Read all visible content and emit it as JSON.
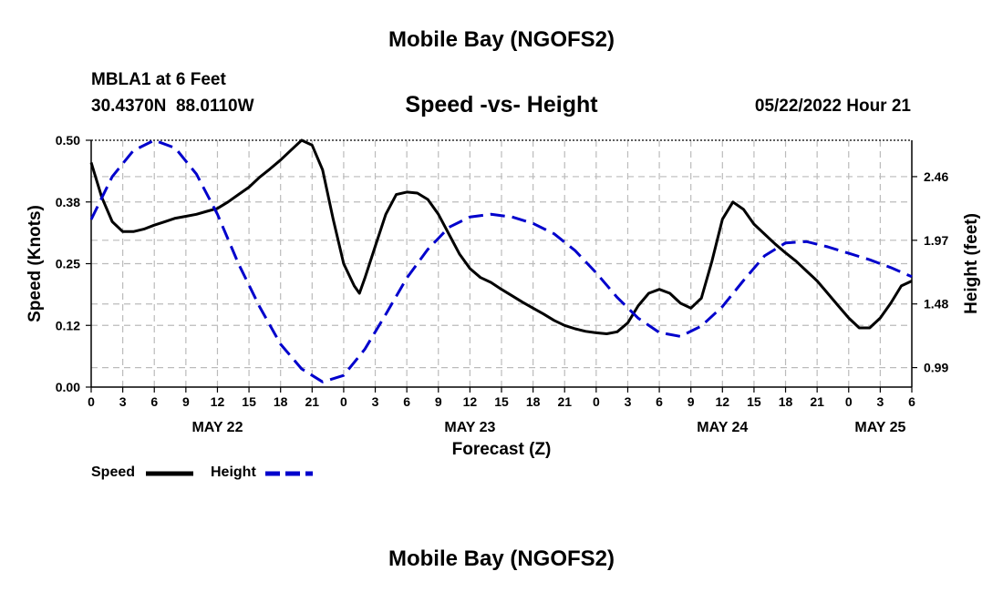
{
  "page": {
    "title": "Mobile Bay (NGOFS2)",
    "footer_title": "Mobile Bay (NGOFS2)",
    "station": "MBLA1 at 6 Feet",
    "coords": "30.4370N  88.0110W",
    "subtitle": "Speed -vs- Height",
    "timestamp": "05/22/2022 Hour 21"
  },
  "legend": {
    "speed_label": "Speed",
    "height_label": "Height"
  },
  "colors": {
    "speed": "#000000",
    "height": "#0000cc",
    "grid": "#bbbbbb"
  },
  "chart_data": {
    "type": "line",
    "xlabel": "Forecast (Z)",
    "ylabel": "Speed (Knots)",
    "y2label": "Height (feet)",
    "grid": true,
    "legend_position": "bottom-left",
    "x_unit": "hours",
    "xlim": [
      0,
      78
    ],
    "ylim": [
      0,
      0.5
    ],
    "y2lim": [
      0.84,
      2.74
    ],
    "x_ticks": [
      0,
      3,
      6,
      9,
      12,
      15,
      18,
      21,
      24,
      27,
      30,
      33,
      36,
      39,
      42,
      45,
      48,
      51,
      54,
      57,
      60,
      63,
      66,
      69,
      72,
      75,
      78
    ],
    "x_tick_labels": [
      "0",
      "3",
      "6",
      "9",
      "12",
      "15",
      "18",
      "21",
      "0",
      "3",
      "6",
      "9",
      "12",
      "15",
      "18",
      "21",
      "0",
      "3",
      "6",
      "9",
      "12",
      "15",
      "18",
      "21",
      "0",
      "3",
      "6"
    ],
    "date_labels": [
      {
        "x": 12,
        "label": "MAY 22"
      },
      {
        "x": 36,
        "label": "MAY 23"
      },
      {
        "x": 60,
        "label": "MAY 24"
      },
      {
        "x": 75,
        "label": "MAY 25"
      }
    ],
    "y_ticks": [
      0,
      0.125,
      0.25,
      0.375,
      0.5
    ],
    "y_tick_labels": [
      "0.00",
      "0.12",
      "0.25",
      "0.38",
      "0.50"
    ],
    "y2_ticks": [
      0.99,
      1.48,
      1.97,
      2.46
    ],
    "y2_tick_labels": [
      "0.99",
      "1.48",
      "1.97",
      "2.46"
    ],
    "series": [
      {
        "name": "Speed",
        "axis": "left",
        "style": "solid",
        "x": [
          0,
          1,
          2,
          3,
          4,
          5,
          6,
          7,
          8,
          9,
          10,
          11,
          12,
          13,
          14,
          15,
          16,
          17,
          18,
          19,
          20,
          21,
          22,
          23,
          24,
          25,
          25.5,
          26,
          27,
          28,
          29,
          30,
          31,
          32,
          33,
          34,
          35,
          36,
          37,
          38,
          39,
          40,
          41,
          42,
          43,
          44,
          45,
          46,
          47,
          48,
          49,
          50,
          51,
          52,
          53,
          54,
          55,
          56,
          57,
          58,
          59,
          60,
          61,
          62,
          63,
          64,
          65,
          66,
          67,
          68,
          69,
          70,
          71,
          72,
          73,
          74,
          75,
          76,
          77,
          78
        ],
        "values": [
          0.455,
          0.385,
          0.335,
          0.315,
          0.315,
          0.32,
          0.328,
          0.335,
          0.342,
          0.346,
          0.35,
          0.356,
          0.362,
          0.375,
          0.39,
          0.405,
          0.425,
          0.442,
          0.46,
          0.48,
          0.5,
          0.49,
          0.44,
          0.34,
          0.25,
          0.205,
          0.19,
          0.22,
          0.285,
          0.35,
          0.39,
          0.395,
          0.393,
          0.38,
          0.35,
          0.31,
          0.27,
          0.24,
          0.222,
          0.212,
          0.198,
          0.185,
          0.172,
          0.16,
          0.148,
          0.135,
          0.125,
          0.118,
          0.113,
          0.11,
          0.108,
          0.112,
          0.13,
          0.165,
          0.19,
          0.198,
          0.19,
          0.17,
          0.16,
          0.18,
          0.255,
          0.34,
          0.375,
          0.36,
          0.33,
          0.31,
          0.29,
          0.272,
          0.255,
          0.235,
          0.215,
          0.19,
          0.165,
          0.14,
          0.12,
          0.12,
          0.14,
          0.17,
          0.205,
          0.215
        ]
      },
      {
        "name": "Height",
        "axis": "right",
        "style": "dashed",
        "x": [
          0,
          2,
          4,
          6,
          8,
          10,
          12,
          14,
          16,
          18,
          20,
          22,
          24,
          26,
          28,
          30,
          32,
          34,
          36,
          38,
          40,
          42,
          44,
          46,
          48,
          50,
          52,
          54,
          56,
          58,
          60,
          62,
          64,
          66,
          68,
          70,
          72,
          74,
          76,
          78
        ],
        "values": [
          2.13,
          2.46,
          2.66,
          2.74,
          2.68,
          2.48,
          2.17,
          1.79,
          1.46,
          1.17,
          0.98,
          0.88,
          0.93,
          1.13,
          1.4,
          1.68,
          1.9,
          2.07,
          2.15,
          2.17,
          2.15,
          2.1,
          2.02,
          1.89,
          1.72,
          1.53,
          1.37,
          1.26,
          1.23,
          1.31,
          1.46,
          1.66,
          1.85,
          1.95,
          1.96,
          1.92,
          1.87,
          1.82,
          1.76,
          1.69
        ]
      }
    ]
  }
}
